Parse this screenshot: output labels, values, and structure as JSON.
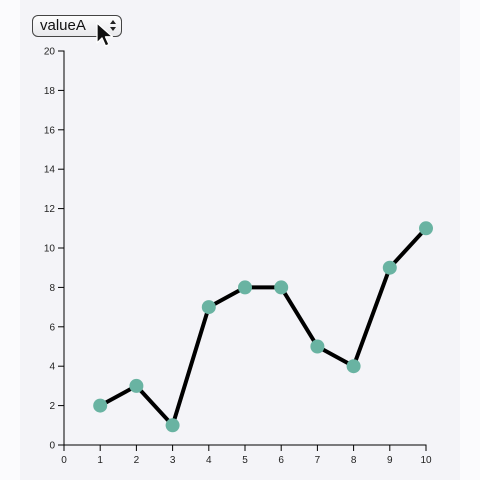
{
  "dropdown": {
    "selected": "valueA"
  },
  "chart_data": {
    "type": "line",
    "x": [
      1,
      2,
      3,
      4,
      5,
      6,
      7,
      8,
      9,
      10
    ],
    "series": [
      {
        "values": [
          2,
          3,
          1,
          7,
          8,
          8,
          5,
          4,
          9,
          11
        ]
      }
    ],
    "xlim": [
      0,
      10
    ],
    "ylim": [
      0,
      20
    ],
    "x_ticks": [
      "0",
      "1",
      "2",
      "3",
      "4",
      "5",
      "6",
      "7",
      "8",
      "9",
      "10"
    ],
    "y_ticks": [
      "0",
      "2",
      "4",
      "6",
      "8",
      "10",
      "12",
      "14",
      "16",
      "18",
      "20"
    ],
    "grid": false,
    "line_color": "#000000",
    "marker_color": "#69b3a2"
  }
}
